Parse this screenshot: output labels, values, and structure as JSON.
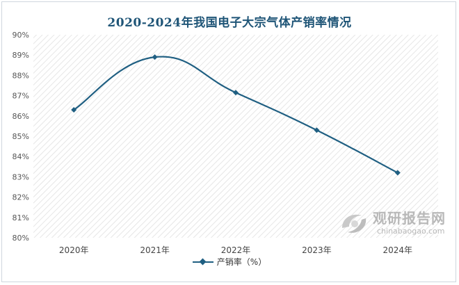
{
  "chart_data": {
    "type": "line",
    "title": "2020-2024年我国电子大宗气体产销率情况",
    "categories": [
      "2020年",
      "2021年",
      "2022年",
      "2023年",
      "2024年"
    ],
    "series": [
      {
        "name": "产销率（%）",
        "values": [
          86.3,
          88.9,
          87.15,
          85.3,
          83.2
        ]
      }
    ],
    "ylim": [
      80,
      90
    ],
    "yticks": [
      "80%",
      "81%",
      "82%",
      "83%",
      "84%",
      "85%",
      "86%",
      "87%",
      "88%",
      "89%",
      "90%"
    ],
    "xlabel": "",
    "ylabel": "",
    "grid": false,
    "legend_position": "bottom",
    "line_color": "#1f5f82",
    "title_color": "#1f5577"
  },
  "watermark": {
    "brand": "观研报告网",
    "url": "chinabaogao.com"
  }
}
